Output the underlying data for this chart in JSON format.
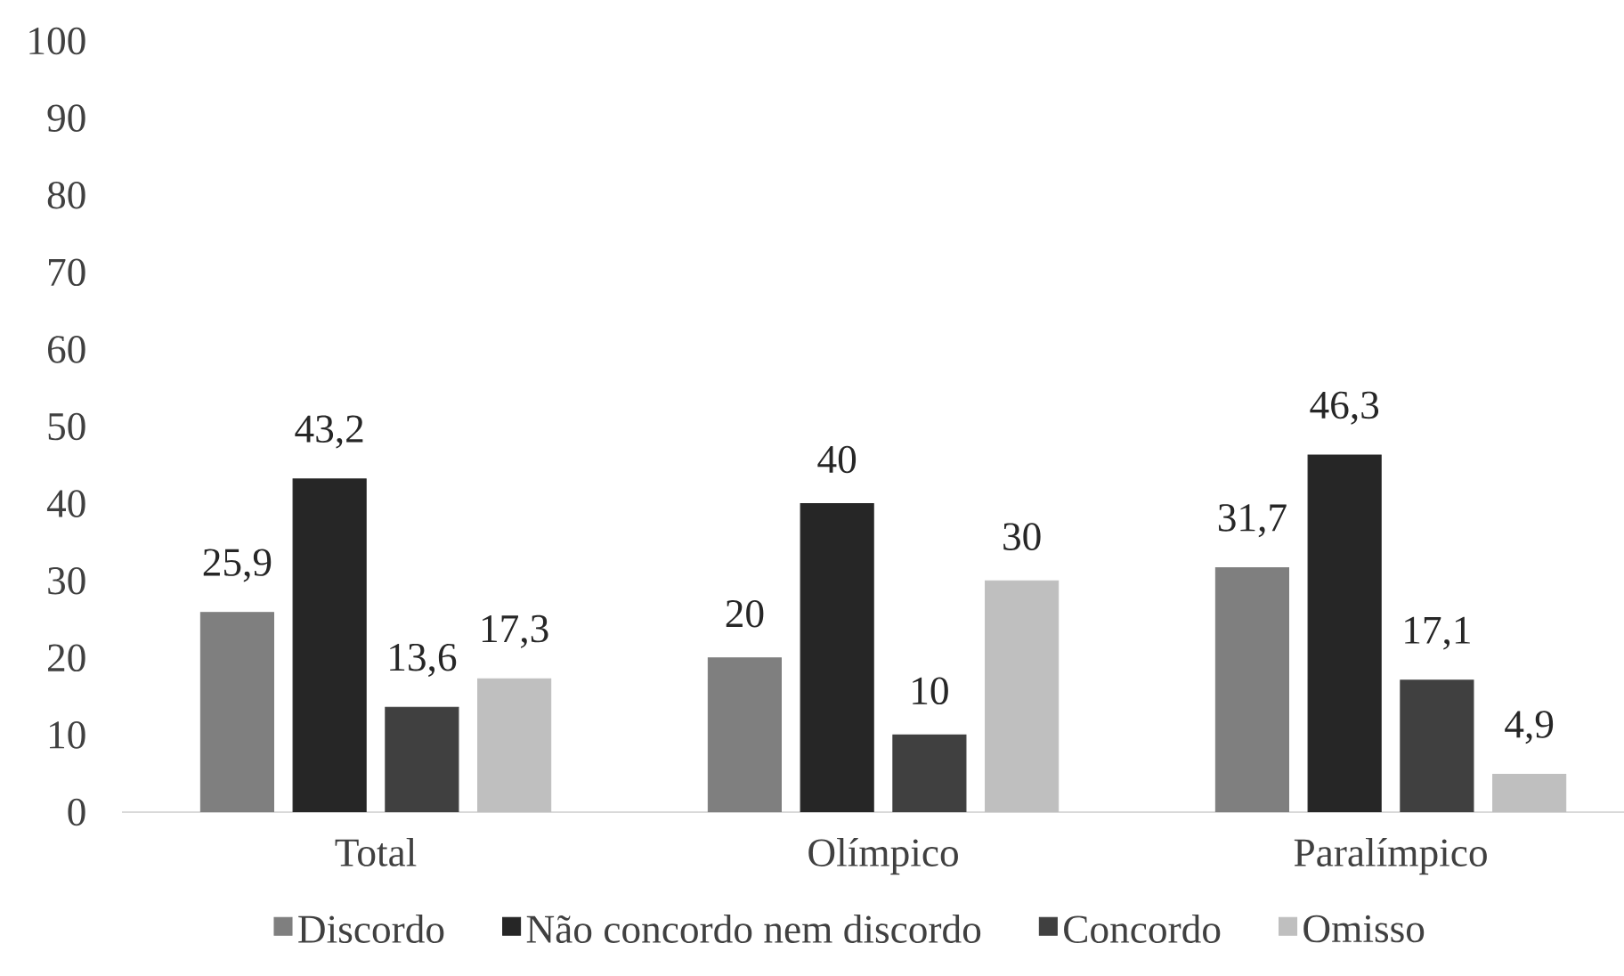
{
  "chart_data": {
    "type": "bar",
    "categories": [
      "Total",
      "Olímpico",
      "Paralímpico"
    ],
    "series": [
      {
        "name": "Discordo",
        "color": "#7f7f7f",
        "values": [
          25.9,
          20,
          31.7
        ],
        "value_labels": [
          "25,9",
          "20",
          "31,7"
        ]
      },
      {
        "name": "Não concordo nem discordo",
        "color": "#262626",
        "values": [
          43.2,
          40,
          46.3
        ],
        "value_labels": [
          "43,2",
          "40",
          "46,3"
        ]
      },
      {
        "name": "Concordo",
        "color": "#404040",
        "values": [
          13.6,
          10,
          17.1
        ],
        "value_labels": [
          "13,6",
          "10",
          "17,1"
        ]
      },
      {
        "name": "Omisso",
        "color": "#bfbfbf",
        "values": [
          17.3,
          30,
          4.9
        ],
        "value_labels": [
          "17,3",
          "30",
          "4,9"
        ]
      }
    ],
    "ylim": [
      0,
      100
    ],
    "yticks": [
      0,
      10,
      20,
      30,
      40,
      50,
      60,
      70,
      80,
      90,
      100
    ],
    "legend": "bottom"
  }
}
